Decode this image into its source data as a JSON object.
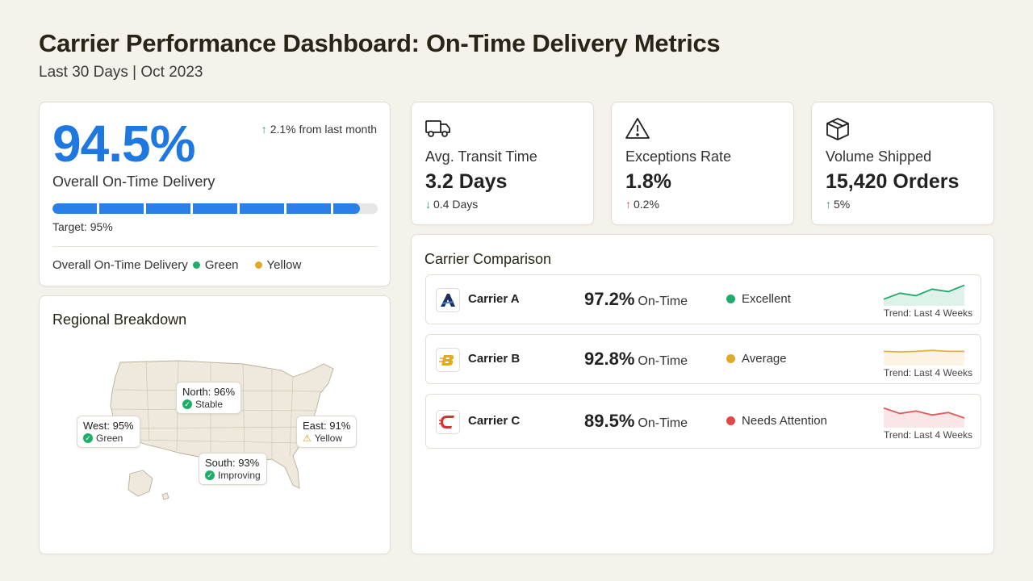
{
  "header": {
    "title": "Carrier Performance Dashboard: On-Time Delivery Metrics",
    "subtitle": "Last 30 Days | Oct 2023"
  },
  "overall": {
    "percent": "94.5%",
    "change": "2.1% from last month",
    "label": "Overall On-Time Delivery",
    "progress_fraction": 0.945,
    "target": "Target: 95%",
    "legend_label": "Overall On-Time Delivery",
    "legend_green": "Green",
    "legend_yellow": "Yellow"
  },
  "regional": {
    "title": "Regional Breakdown",
    "regions": {
      "north": {
        "label": "North: 96%",
        "status": "Stable"
      },
      "west": {
        "label": "West: 95%",
        "status": "Green"
      },
      "east": {
        "label": "East: 91%",
        "status": "Yellow"
      },
      "south": {
        "label": "South: 93%",
        "status": "Improving"
      }
    }
  },
  "kpis": {
    "transit": {
      "label": "Avg. Transit Time",
      "value": "3.2 Days",
      "change": "0.4 Days",
      "icon": "truck-icon"
    },
    "exceptions": {
      "label": "Exceptions Rate",
      "value": "1.8%",
      "change": "0.2%",
      "icon": "warning-icon"
    },
    "volume": {
      "label": "Volume Shipped",
      "value": "15,420 Orders",
      "change": "5%",
      "icon": "package-icon"
    }
  },
  "comparison": {
    "title": "Carrier Comparison",
    "ontime_suffix": "On-Time",
    "trend_label": "Trend: Last 4 Weeks",
    "carriers": [
      {
        "name": "Carrier A",
        "percent": "97.2%",
        "status": "Excellent",
        "status_color": "#1fae6a",
        "trend_color": "#22a86a",
        "trend": [
          40,
          52,
          47,
          60,
          55,
          68
        ]
      },
      {
        "name": "Carrier B",
        "percent": "92.8%",
        "status": "Average",
        "status_color": "#e2a82a",
        "trend_color": "#e2b040",
        "trend": [
          55,
          54,
          55,
          57,
          55,
          55
        ]
      },
      {
        "name": "Carrier C",
        "percent": "89.5%",
        "status": "Needs Attention",
        "status_color": "#e04848",
        "trend_color": "#e05a5a",
        "trend": [
          66,
          55,
          60,
          52,
          57,
          46
        ]
      }
    ]
  },
  "colors": {
    "accent_blue": "#1f78e0",
    "green": "#1fae6a",
    "yellow": "#e2a82a",
    "red": "#e04848"
  }
}
